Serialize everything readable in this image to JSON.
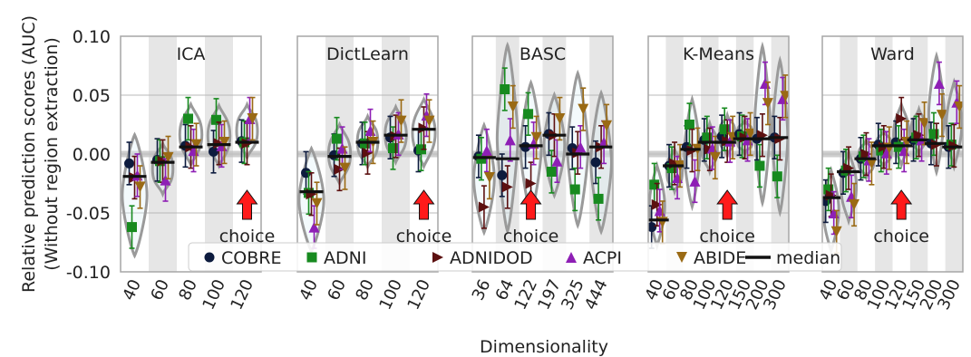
{
  "figure": {
    "ylabel_line1": "Relative prediction scores (AUC)",
    "ylabel_line2": "(Without region extraction)",
    "xlabel": "Dimensionality",
    "choice_label": "choice"
  },
  "legend": [
    {
      "key": "COBRE",
      "label": "COBRE",
      "color": "#0d1b3e",
      "marker": "circle"
    },
    {
      "key": "ADNI",
      "label": "ADNI",
      "color": "#178a1f",
      "marker": "square"
    },
    {
      "key": "ADNIDOD",
      "label": "ADNIDOD",
      "color": "#5c1010",
      "marker": "triangle-right"
    },
    {
      "key": "ACPI",
      "label": "ACPI",
      "color": "#8e1fb5",
      "marker": "triangle-up"
    },
    {
      "key": "ABIDE",
      "label": "ABIDE",
      "color": "#9a6a14",
      "marker": "triangle-down"
    },
    {
      "key": "median",
      "label": "median",
      "color": "#111111",
      "marker": "line"
    }
  ],
  "chart_data": [
    {
      "type": "scatter",
      "title": "ICA",
      "categories": [
        "40",
        "60",
        "80",
        "100",
        "120"
      ],
      "choice": "120",
      "ylim": [
        -0.1,
        0.1
      ],
      "yticks": [
        "-0.10",
        "-0.05",
        "0.00",
        "0.05",
        "0.10"
      ],
      "median": [
        -0.019,
        -0.007,
        0.006,
        0.008,
        0.01
      ],
      "series": [
        {
          "name": "COBRE",
          "values": [
            -0.008,
            -0.005,
            0.007,
            0.002,
            0.011
          ]
        },
        {
          "name": "ADNI",
          "values": [
            -0.062,
            -0.006,
            0.03,
            0.029,
            0.01
          ]
        },
        {
          "name": "ADNIDOD",
          "values": [
            -0.02,
            -0.006,
            0.006,
            0.009,
            0.009
          ]
        },
        {
          "name": "ACPI",
          "values": [
            -0.018,
            -0.022,
            0.003,
            0.007,
            0.03
          ]
        },
        {
          "name": "ABIDE",
          "values": [
            -0.028,
            -0.003,
            0.008,
            0.01,
            0.03
          ]
        }
      ]
    },
    {
      "type": "scatter",
      "title": "DictLearn",
      "categories": [
        "40",
        "60",
        "80",
        "100",
        "120"
      ],
      "choice": "120",
      "ylim": [
        -0.1,
        0.1
      ],
      "median": [
        -0.032,
        -0.002,
        0.01,
        0.016,
        0.021
      ],
      "series": [
        {
          "name": "COBRE",
          "values": [
            -0.016,
            -0.001,
            0.009,
            0.014,
            0.003
          ]
        },
        {
          "name": "ADNI",
          "values": [
            -0.033,
            0.013,
            0.009,
            0.005,
            0.004
          ]
        },
        {
          "name": "ADNIDOD",
          "values": [
            -0.034,
            -0.013,
            0.001,
            0.015,
            0.022
          ]
        },
        {
          "name": "ACPI",
          "values": [
            -0.062,
            0.005,
            0.02,
            0.017,
            0.033
          ]
        },
        {
          "name": "ABIDE",
          "values": [
            -0.042,
            -0.012,
            0.01,
            0.028,
            0.028
          ]
        }
      ]
    },
    {
      "type": "scatter",
      "title": "BASC",
      "categories": [
        "36",
        "64",
        "122",
        "197",
        "325",
        "444"
      ],
      "choice": "122",
      "ylim": [
        -0.1,
        0.1
      ],
      "median": [
        -0.003,
        -0.004,
        0.007,
        0.016,
        0.0,
        0.006
      ],
      "series": [
        {
          "name": "COBRE",
          "values": [
            -0.002,
            -0.018,
            0.006,
            0.017,
            0.005,
            -0.007
          ]
        },
        {
          "name": "ADNI",
          "values": [
            -0.004,
            0.055,
            0.034,
            -0.015,
            -0.03,
            -0.038
          ]
        },
        {
          "name": "ADNIDOD",
          "values": [
            -0.045,
            -0.028,
            -0.025,
            0.016,
            0.001,
            0.006
          ]
        },
        {
          "name": "ACPI",
          "values": [
            0.003,
            0.012,
            0.009,
            -0.006,
            0.006,
            0.01
          ]
        },
        {
          "name": "ABIDE",
          "values": [
            -0.02,
            0.04,
            0.014,
            0.03,
            0.038,
            0.024
          ]
        }
      ]
    },
    {
      "type": "scatter",
      "title": "K-Means",
      "categories": [
        "40",
        "60",
        "80",
        "100",
        "120",
        "150",
        "200",
        "300"
      ],
      "choice": "120",
      "ylim": [
        -0.1,
        0.1
      ],
      "median": [
        -0.056,
        -0.01,
        0.004,
        0.01,
        0.01,
        0.013,
        0.013,
        0.014
      ],
      "series": [
        {
          "name": "COBRE",
          "values": [
            -0.062,
            -0.01,
            0.006,
            0.012,
            0.015,
            0.017,
            0.013,
            0.014
          ]
        },
        {
          "name": "ADNI",
          "values": [
            -0.026,
            -0.012,
            0.025,
            0.014,
            0.021,
            0.015,
            -0.01,
            -0.019
          ]
        },
        {
          "name": "ADNIDOD",
          "values": [
            -0.043,
            -0.008,
            0.003,
            0.004,
            0.011,
            0.014,
            0.016,
            0.013
          ]
        },
        {
          "name": "ACPI",
          "values": [
            -0.048,
            -0.02,
            -0.023,
            0.005,
            0.011,
            0.012,
            0.06,
            0.047
          ]
        },
        {
          "name": "ABIDE",
          "values": [
            -0.058,
            -0.01,
            0.004,
            -0.003,
            0.014,
            0.017,
            0.043,
            0.049
          ]
        }
      ]
    },
    {
      "type": "scatter",
      "title": "Ward",
      "categories": [
        "40",
        "60",
        "80",
        "100",
        "120",
        "150",
        "200",
        "300"
      ],
      "choice": "120",
      "ylim": [
        -0.1,
        0.1
      ],
      "median": [
        -0.037,
        -0.015,
        -0.004,
        0.007,
        0.007,
        0.012,
        0.009,
        0.006
      ],
      "series": [
        {
          "name": "COBRE",
          "values": [
            -0.04,
            -0.016,
            -0.004,
            0.008,
            0.01,
            0.012,
            0.009,
            0.006
          ]
        },
        {
          "name": "ADNI",
          "values": [
            -0.03,
            -0.014,
            -0.002,
            0.003,
            0.006,
            0.014,
            0.017,
            0.008
          ]
        },
        {
          "name": "ADNIDOD",
          "values": [
            -0.035,
            -0.012,
            0.0,
            0.006,
            0.03,
            0.016,
            0.008,
            0.007
          ]
        },
        {
          "name": "ACPI",
          "values": [
            -0.05,
            -0.036,
            -0.005,
            0.001,
            0.003,
            0.012,
            0.06,
            0.044
          ]
        },
        {
          "name": "ABIDE",
          "values": [
            -0.066,
            -0.043,
            -0.008,
            0.005,
            0.01,
            0.026,
            0.033,
            0.04
          ]
        }
      ]
    }
  ]
}
